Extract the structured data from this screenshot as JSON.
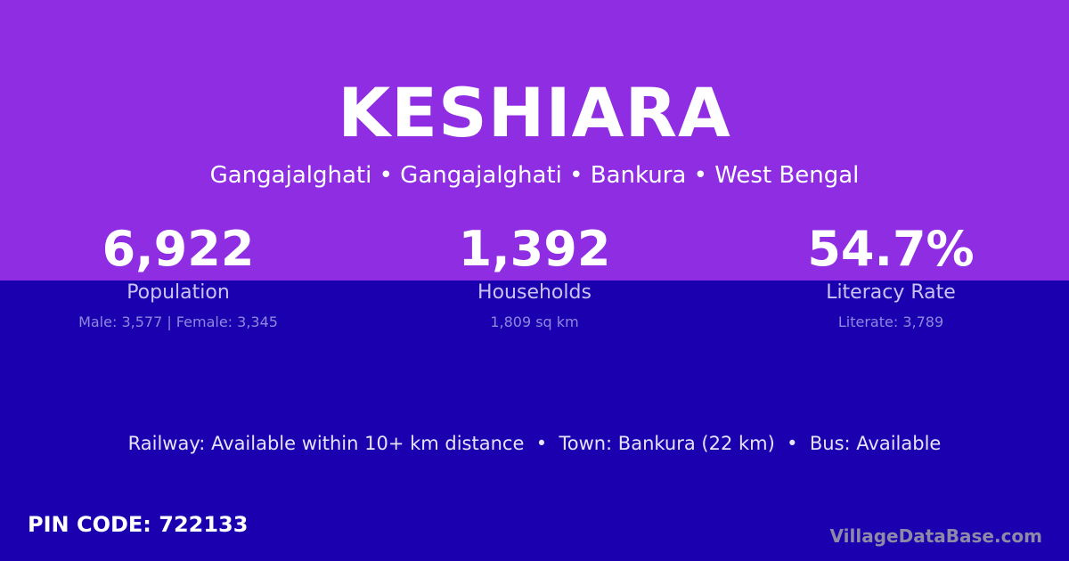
{
  "village": {
    "name": "KESHIARA",
    "location": "Gangajalghati • Gangajalghati • Bankura • West Bengal"
  },
  "stats": [
    {
      "value": "6,922",
      "label": "Population",
      "detail": "Male: 3,577 | Female: 3,345"
    },
    {
      "value": "1,392",
      "label": "Households",
      "detail": "1,809 sq km"
    },
    {
      "value": "54.7%",
      "label": "Literacy Rate",
      "detail": "Literate: 3,789"
    }
  ],
  "transport": "Railway: Available within 10+ km distance  •  Town: Bankura (22 km)  •  Bus: Available",
  "pin": "PIN CODE: 722133",
  "brand": "VillageDataBase.com",
  "colors": {
    "top": "#8e2de2",
    "bottom": "#1a00ae"
  }
}
